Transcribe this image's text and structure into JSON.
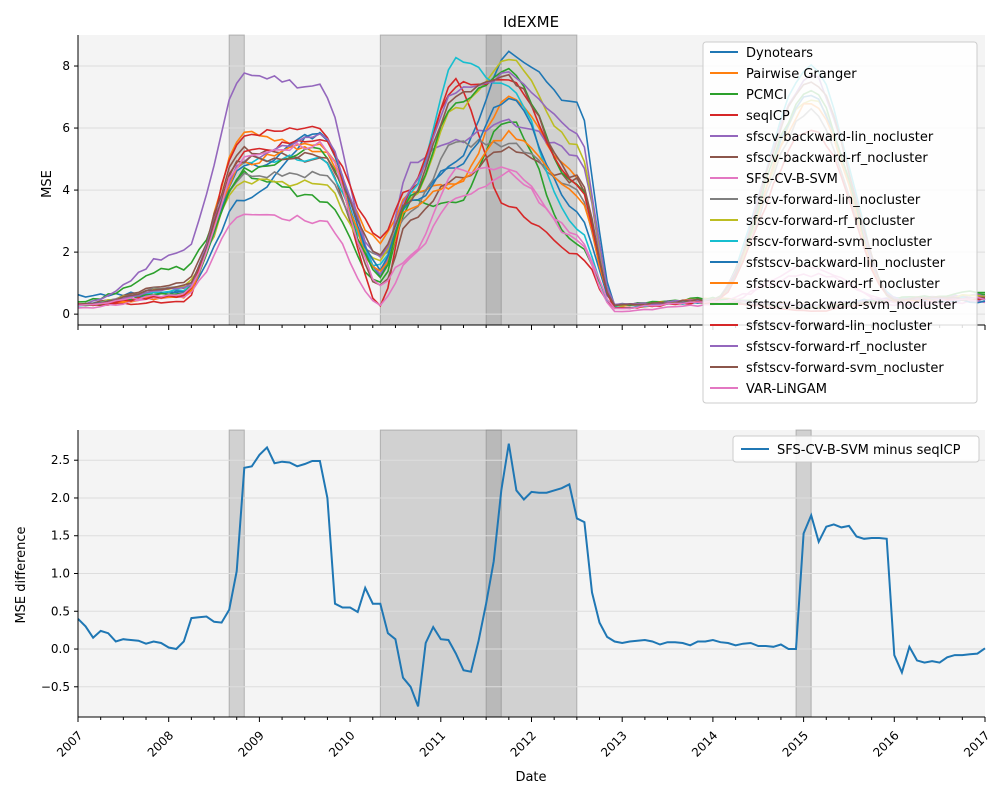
{
  "chart_data": [
    {
      "type": "line",
      "title": "IdEXME",
      "xlabel": "",
      "ylabel": "MSE",
      "ylim": [
        -0.35,
        9.0
      ],
      "yticks": [
        0,
        2,
        4,
        6,
        8
      ],
      "grid": "horizontal",
      "legend": "top-right",
      "background": "#f4f4f4",
      "shaded_periods": [
        [
          "2008-09",
          "2008-11"
        ],
        [
          "2010-05",
          "2012-07"
        ],
        [
          "2011-07",
          "2011-09"
        ]
      ],
      "series": [
        {
          "name": "Dynotears",
          "color": "#1f77b4",
          "profile": [
            0.6,
            0.7,
            3.7,
            5.8,
            1.3,
            3.8,
            4.9,
            8.4,
            6.8,
            0.3,
            0.4,
            0.3,
            0.5,
            0.5
          ]
        },
        {
          "name": "Pairwise Granger",
          "color": "#ff7f0e",
          "profile": [
            0.3,
            0.55,
            5.8,
            5.3,
            2.3,
            4.0,
            4.1,
            7.0,
            4.5,
            0.2,
            0.5,
            0.3,
            0.45,
            0.6
          ]
        },
        {
          "name": "PCMCI",
          "color": "#2ca02c",
          "profile": [
            0.4,
            1.5,
            4.5,
            3.7,
            1.0,
            3.6,
            3.6,
            6.3,
            2.2,
            0.3,
            0.5,
            0.2,
            0.45,
            0.6
          ]
        },
        {
          "name": "seqICP",
          "color": "#d62728",
          "profile": [
            0.3,
            0.4,
            5.8,
            6.0,
            0.3,
            4.0,
            7.5,
            3.4,
            2.0,
            0.2,
            0.4,
            0.1,
            0.4,
            0.5
          ]
        },
        {
          "name": "sfscv-backward-lin_nocluster",
          "color": "#9467bd",
          "profile": [
            0.3,
            2.0,
            7.8,
            7.3,
            1.2,
            4.9,
            5.6,
            6.2,
            5.2,
            0.3,
            0.45,
            0.3,
            0.5,
            0.6
          ]
        },
        {
          "name": "sfscv-backward-rf_nocluster",
          "color": "#8c564b",
          "profile": [
            0.3,
            1.0,
            5.3,
            5.0,
            0.9,
            3.0,
            4.4,
            5.3,
            4.3,
            0.3,
            0.4,
            0.2,
            0.4,
            0.5
          ]
        },
        {
          "name": "SFS-CV-B-SVM",
          "color": "#e377c2",
          "profile": [
            0.2,
            0.6,
            3.3,
            3.0,
            0.3,
            1.8,
            3.8,
            4.5,
            2.5,
            0.1,
            0.3,
            1.5,
            0.3,
            0.4
          ]
        },
        {
          "name": "sfscv-forward-lin_nocluster",
          "color": "#7f7f7f",
          "profile": [
            0.3,
            0.9,
            4.5,
            4.5,
            1.8,
            3.3,
            5.5,
            5.5,
            4.0,
            0.3,
            0.4,
            6.5,
            0.5,
            0.5
          ]
        },
        {
          "name": "sfscv-forward-rf_nocluster",
          "color": "#bcbd22",
          "profile": [
            0.3,
            0.9,
            4.3,
            4.2,
            1.7,
            3.8,
            6.6,
            8.2,
            5.4,
            0.3,
            0.4,
            6.9,
            0.5,
            0.6
          ]
        },
        {
          "name": "sfscv-forward-svm_nocluster",
          "color": "#17becf",
          "profile": [
            0.3,
            0.8,
            5.0,
            5.0,
            1.5,
            3.8,
            8.2,
            7.3,
            2.8,
            0.2,
            0.4,
            8.0,
            0.5,
            0.5
          ]
        },
        {
          "name": "sfstscv-backward-lin_nocluster",
          "color": "#1f77b4",
          "profile": [
            0.3,
            0.7,
            4.7,
            5.8,
            1.5,
            3.6,
            4.8,
            7.0,
            3.3,
            0.3,
            0.4,
            7.0,
            0.5,
            0.4
          ]
        },
        {
          "name": "sfstscv-backward-rf_nocluster",
          "color": "#ff7f0e",
          "profile": [
            0.3,
            0.6,
            4.9,
            5.5,
            1.3,
            3.5,
            4.2,
            5.8,
            3.9,
            0.3,
            0.45,
            6.8,
            0.45,
            0.5
          ]
        },
        {
          "name": "sfstscv-backward-svm_nocluster",
          "color": "#2ca02c",
          "profile": [
            0.3,
            0.7,
            4.6,
            5.3,
            1.2,
            3.7,
            6.9,
            7.8,
            4.2,
            0.3,
            0.45,
            7.2,
            0.5,
            0.7
          ]
        },
        {
          "name": "sfstscv-forward-lin_nocluster",
          "color": "#d62728",
          "profile": [
            0.3,
            0.6,
            5.2,
            5.7,
            2.5,
            4.1,
            7.4,
            7.5,
            4.2,
            0.2,
            0.4,
            6.0,
            0.5,
            0.5
          ]
        },
        {
          "name": "sfstscv-forward-rf_nocluster",
          "color": "#9467bd",
          "profile": [
            0.3,
            0.8,
            5.0,
            5.8,
            1.8,
            4.0,
            7.2,
            7.7,
            5.9,
            0.3,
            0.45,
            7.7,
            0.5,
            0.5
          ]
        },
        {
          "name": "sfstscv-forward-svm_nocluster",
          "color": "#8c564b",
          "profile": [
            0.3,
            0.9,
            5.0,
            5.1,
            2.0,
            3.7,
            7.1,
            7.6,
            4.4,
            0.3,
            0.45,
            7.6,
            0.5,
            0.5
          ]
        },
        {
          "name": "VAR-LiNGAM",
          "color": "#e377c2",
          "profile": [
            0.3,
            0.65,
            5.0,
            5.5,
            1.0,
            1.8,
            4.6,
            4.7,
            2.6,
            0.2,
            0.4,
            1.3,
            0.4,
            0.5
          ]
        }
      ]
    },
    {
      "type": "line",
      "title": "",
      "xlabel": "Date",
      "ylabel": "MSE difference",
      "ylim": [
        -0.9,
        2.9
      ],
      "yticks": [
        -0.5,
        0.0,
        0.5,
        1.0,
        1.5,
        2.0,
        2.5
      ],
      "ytick_labels": [
        "−0.5",
        "0.0",
        "0.5",
        "1.0",
        "1.5",
        "2.0",
        "2.5"
      ],
      "grid": "horizontal",
      "legend": "top-right",
      "background": "#f4f4f4",
      "shaded_periods": [
        [
          "2008-09",
          "2008-11"
        ],
        [
          "2010-05",
          "2012-07"
        ],
        [
          "2011-07",
          "2011-09"
        ],
        [
          "2014-12",
          "2015-02"
        ]
      ],
      "x_range": [
        "2007-01",
        "2017-01"
      ],
      "xtick_labels": [
        "2007",
        "2008",
        "2009",
        "2010",
        "2011",
        "2012",
        "2013",
        "2014",
        "2015",
        "2016",
        "2017"
      ],
      "series": [
        {
          "name": "SFS-CV-B-SVM minus seqICP",
          "color": "#1f77b4",
          "points": [
            [
              "2007-01",
              0.4
            ],
            [
              "2007-02",
              0.3
            ],
            [
              "2007-03",
              0.15
            ],
            [
              "2007-04",
              0.24
            ],
            [
              "2007-05",
              0.21
            ],
            [
              "2007-06",
              0.1
            ],
            [
              "2007-07",
              0.13
            ],
            [
              "2007-08",
              0.12
            ],
            [
              "2007-09",
              0.11
            ],
            [
              "2007-10",
              0.07
            ],
            [
              "2007-11",
              0.1
            ],
            [
              "2007-12",
              0.08
            ],
            [
              "2008-01",
              0.02
            ],
            [
              "2008-02",
              0.0
            ],
            [
              "2008-03",
              0.1
            ],
            [
              "2008-04",
              0.41
            ],
            [
              "2008-05",
              0.42
            ],
            [
              "2008-06",
              0.43
            ],
            [
              "2008-07",
              0.36
            ],
            [
              "2008-08",
              0.35
            ],
            [
              "2008-09",
              0.52
            ],
            [
              "2008-10",
              1.03
            ],
            [
              "2008-11",
              2.4
            ],
            [
              "2008-12",
              2.42
            ],
            [
              "2009-01",
              2.57
            ],
            [
              "2009-02",
              2.67
            ],
            [
              "2009-03",
              2.46
            ],
            [
              "2009-04",
              2.48
            ],
            [
              "2009-05",
              2.47
            ],
            [
              "2009-06",
              2.42
            ],
            [
              "2009-07",
              2.45
            ],
            [
              "2009-08",
              2.49
            ],
            [
              "2009-09",
              2.49
            ],
            [
              "2009-10",
              2.0
            ],
            [
              "2009-11",
              0.6
            ],
            [
              "2009-12",
              0.55
            ],
            [
              "2010-01",
              0.55
            ],
            [
              "2010-02",
              0.49
            ],
            [
              "2010-03",
              0.81
            ],
            [
              "2010-04",
              0.6
            ],
            [
              "2010-05",
              0.6
            ],
            [
              "2010-06",
              0.21
            ],
            [
              "2010-07",
              0.13
            ],
            [
              "2010-08",
              -0.38
            ],
            [
              "2010-09",
              -0.5
            ],
            [
              "2010-10",
              -0.76
            ],
            [
              "2010-11",
              0.08
            ],
            [
              "2010-12",
              0.29
            ],
            [
              "2011-01",
              0.13
            ],
            [
              "2011-02",
              0.12
            ],
            [
              "2011-03",
              -0.06
            ],
            [
              "2011-04",
              -0.28
            ],
            [
              "2011-05",
              -0.3
            ],
            [
              "2011-06",
              0.11
            ],
            [
              "2011-07",
              0.6
            ],
            [
              "2011-08",
              1.16
            ],
            [
              "2011-09",
              2.1
            ],
            [
              "2011-10",
              2.72
            ],
            [
              "2011-11",
              2.1
            ],
            [
              "2011-12",
              1.98
            ],
            [
              "2012-01",
              2.08
            ],
            [
              "2012-02",
              2.07
            ],
            [
              "2012-03",
              2.07
            ],
            [
              "2012-04",
              2.1
            ],
            [
              "2012-05",
              2.13
            ],
            [
              "2012-06",
              2.18
            ],
            [
              "2012-07",
              1.73
            ],
            [
              "2012-08",
              1.68
            ],
            [
              "2012-09",
              0.75
            ],
            [
              "2012-10",
              0.35
            ],
            [
              "2012-11",
              0.16
            ],
            [
              "2012-12",
              0.1
            ],
            [
              "2013-01",
              0.08
            ],
            [
              "2013-02",
              0.1
            ],
            [
              "2013-03",
              0.11
            ],
            [
              "2013-04",
              0.12
            ],
            [
              "2013-05",
              0.1
            ],
            [
              "2013-06",
              0.06
            ],
            [
              "2013-07",
              0.09
            ],
            [
              "2013-08",
              0.09
            ],
            [
              "2013-09",
              0.08
            ],
            [
              "2013-10",
              0.05
            ],
            [
              "2013-11",
              0.1
            ],
            [
              "2013-12",
              0.1
            ],
            [
              "2014-01",
              0.12
            ],
            [
              "2014-02",
              0.09
            ],
            [
              "2014-03",
              0.08
            ],
            [
              "2014-04",
              0.05
            ],
            [
              "2014-05",
              0.07
            ],
            [
              "2014-06",
              0.08
            ],
            [
              "2014-07",
              0.04
            ],
            [
              "2014-08",
              0.04
            ],
            [
              "2014-09",
              0.03
            ],
            [
              "2014-10",
              0.06
            ],
            [
              "2014-11",
              0.0
            ],
            [
              "2014-12",
              0.0
            ],
            [
              "2015-01",
              1.53
            ],
            [
              "2015-02",
              1.77
            ],
            [
              "2015-03",
              1.42
            ],
            [
              "2015-04",
              1.62
            ],
            [
              "2015-05",
              1.65
            ],
            [
              "2015-06",
              1.61
            ],
            [
              "2015-07",
              1.63
            ],
            [
              "2015-08",
              1.49
            ],
            [
              "2015-09",
              1.46
            ],
            [
              "2015-10",
              1.47
            ],
            [
              "2015-11",
              1.47
            ],
            [
              "2015-12",
              1.46
            ],
            [
              "2016-01",
              -0.08
            ],
            [
              "2016-02",
              -0.31
            ],
            [
              "2016-03",
              0.03
            ],
            [
              "2016-04",
              -0.15
            ],
            [
              "2016-05",
              -0.18
            ],
            [
              "2016-06",
              -0.16
            ],
            [
              "2016-07",
              -0.18
            ],
            [
              "2016-08",
              -0.11
            ],
            [
              "2016-09",
              -0.08
            ],
            [
              "2016-10",
              -0.08
            ],
            [
              "2016-11",
              -0.07
            ],
            [
              "2016-12",
              -0.06
            ],
            [
              "2017-01",
              0.01
            ]
          ]
        }
      ]
    }
  ]
}
